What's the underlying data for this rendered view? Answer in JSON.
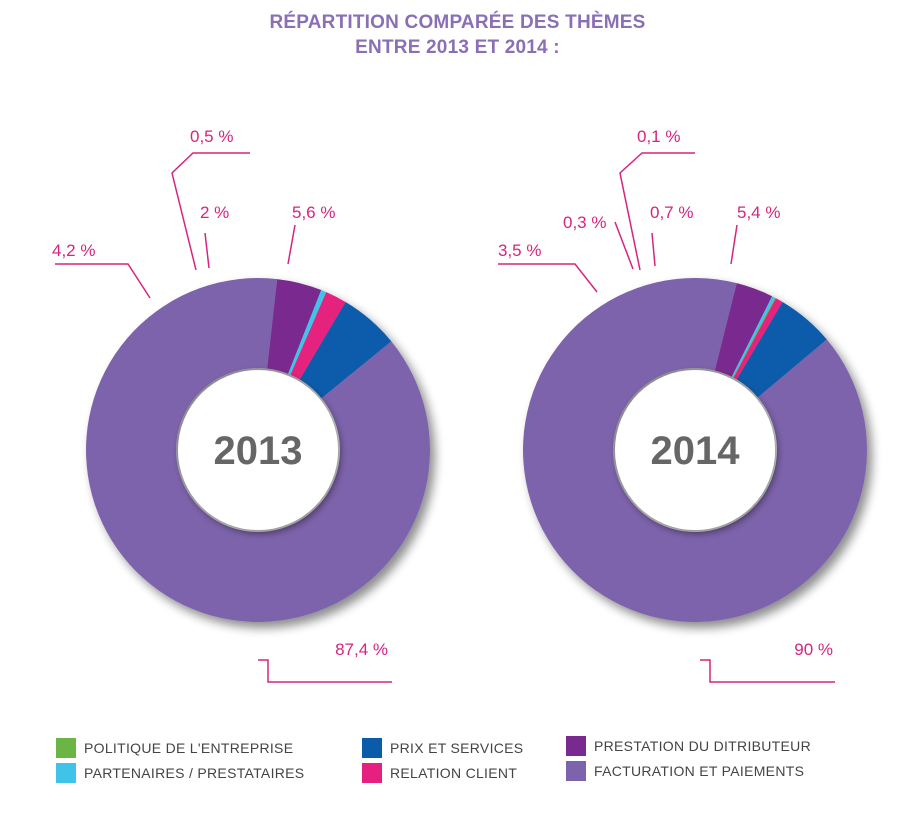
{
  "title": {
    "line1": "RÉPARTITION COMPARÉE DES THÈMES",
    "line2": "ENTRE 2013 ET 2014 :"
  },
  "colors": {
    "politique": "#6ab543",
    "partenaires": "#3fc3e9",
    "prix": "#0a5cab",
    "relation": "#e5207e",
    "prestation": "#7a2a8f",
    "facturation": "#7d63ab",
    "label": "#d6257f",
    "year": "#666666"
  },
  "legend": [
    {
      "key": "politique",
      "label": "POLITIQUE DE L'ENTREPRISE"
    },
    {
      "key": "partenaires",
      "label": "PARTENAIRES / PRESTATAIRES"
    },
    {
      "key": "prix",
      "label": "PRIX ET SERVICES"
    },
    {
      "key": "relation",
      "label": "RELATION CLIENT"
    },
    {
      "key": "prestation",
      "label": "PRESTATION DU DITRIBUTEUR"
    },
    {
      "key": "facturation",
      "label": "FACTURATION ET PAIEMENTS"
    }
  ],
  "chart_data": [
    {
      "type": "pie",
      "center_label": "2013",
      "slices": [
        {
          "key": "prix",
          "value": 5.6,
          "label": "5,6 %"
        },
        {
          "key": "facturation",
          "value": 87.4,
          "label": "87,4 %"
        },
        {
          "key": "prestation",
          "value": 4.2,
          "label": "4,2 %"
        },
        {
          "key": "partenaires",
          "value": 0.5,
          "label": "0,5 %"
        },
        {
          "key": "relation",
          "value": 2,
          "label": "2 %"
        }
      ]
    },
    {
      "type": "pie",
      "center_label": "2014",
      "slices": [
        {
          "key": "prix",
          "value": 5.4,
          "label": "5,4 %"
        },
        {
          "key": "facturation",
          "value": 90,
          "label": "90 %"
        },
        {
          "key": "prestation",
          "value": 3.5,
          "label": "3,5 %"
        },
        {
          "key": "partenaires",
          "value": 0.3,
          "label": "0,3 %"
        },
        {
          "key": "politique",
          "value": 0.1,
          "label": "0,1 %"
        },
        {
          "key": "relation",
          "value": 0.7,
          "label": "0,7 %"
        }
      ]
    }
  ]
}
